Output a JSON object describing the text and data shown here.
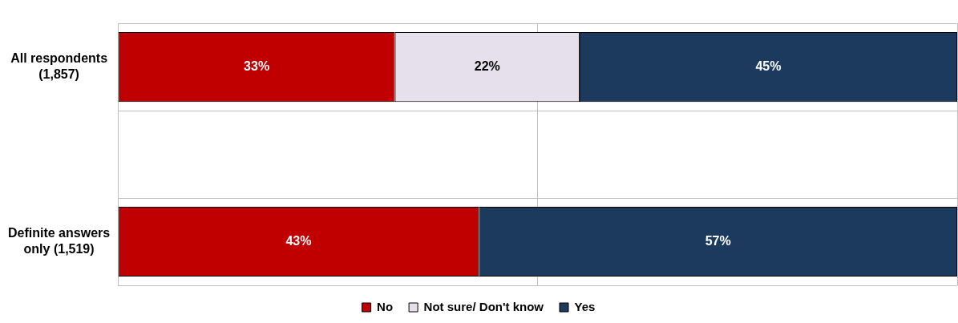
{
  "chart_data": {
    "type": "bar",
    "orientation": "horizontal",
    "stacked": true,
    "categories": [
      "All respondents (1,857)",
      null,
      "Definite answers only (1,519)"
    ],
    "series": [
      {
        "name": "No",
        "color": "#c00000",
        "values": [
          33,
          null,
          43
        ],
        "value_labels": [
          "33%",
          null,
          "43%"
        ]
      },
      {
        "name": "Not sure/ Don't know",
        "color": "#e6e0ec",
        "values": [
          22,
          null,
          null
        ],
        "value_labels": [
          "22%",
          null,
          null
        ]
      },
      {
        "name": "Yes",
        "color": "#1b3a5e",
        "values": [
          45,
          null,
          57
        ],
        "value_labels": [
          "45%",
          null,
          "57%"
        ]
      }
    ],
    "xlim": [
      0,
      100
    ],
    "xticks": [
      {
        "value": 0,
        "label": null
      },
      {
        "value": 50,
        "label": null
      },
      {
        "value": 100,
        "label": null
      }
    ],
    "tick_labels": "y",
    "grid": true,
    "legend": "bottom"
  }
}
